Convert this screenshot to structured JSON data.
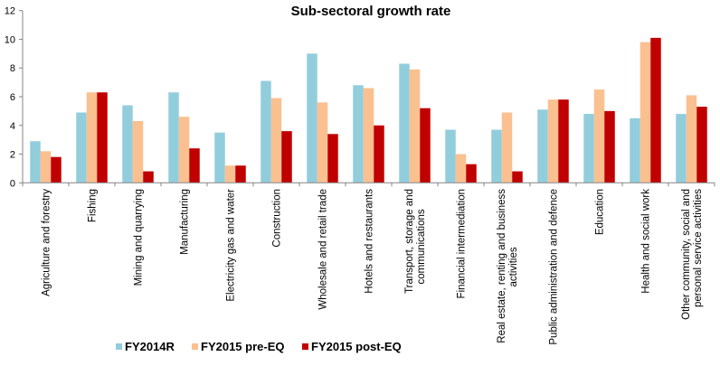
{
  "chart_data": {
    "type": "bar",
    "title": "Sub-sectoral growth rate",
    "xlabel": "",
    "ylabel": "",
    "ylim": [
      0,
      12
    ],
    "yticks": [
      0,
      2,
      4,
      6,
      8,
      10,
      12
    ],
    "grid": false,
    "legend_position": "bottom",
    "categories": [
      "Agriculture and forestry",
      "Fishing",
      "Mining and quarrying",
      "Manufacturing",
      "Electricity gas and water",
      "Construction",
      "Wholesale and retail trade",
      "Hotels and restaurants",
      "Transport, storage and\ncommunications",
      "Financial intermediation",
      "Real estate, renting and business\nactivities",
      "Public administration and defence",
      "Education",
      "Health and social work",
      "Other community, social and\npersonal service activities"
    ],
    "series": [
      {
        "name": "FY2014R",
        "color": "#92CDDC",
        "values": [
          2.9,
          4.9,
          5.4,
          6.3,
          3.5,
          7.1,
          9.0,
          6.8,
          8.3,
          3.7,
          3.7,
          5.1,
          4.8,
          4.5,
          4.8
        ]
      },
      {
        "name": "FY2015 pre-EQ",
        "color": "#FAC090",
        "values": [
          2.2,
          6.3,
          4.3,
          4.6,
          1.2,
          5.9,
          5.6,
          6.6,
          7.9,
          2.0,
          4.9,
          5.8,
          6.5,
          9.8,
          6.1
        ]
      },
      {
        "name": "FY2015 post-EQ",
        "color": "#C00000",
        "values": [
          1.8,
          6.3,
          0.8,
          2.4,
          1.2,
          3.6,
          3.4,
          4.0,
          5.2,
          1.3,
          0.8,
          5.8,
          5.0,
          10.1,
          5.3
        ]
      }
    ]
  }
}
